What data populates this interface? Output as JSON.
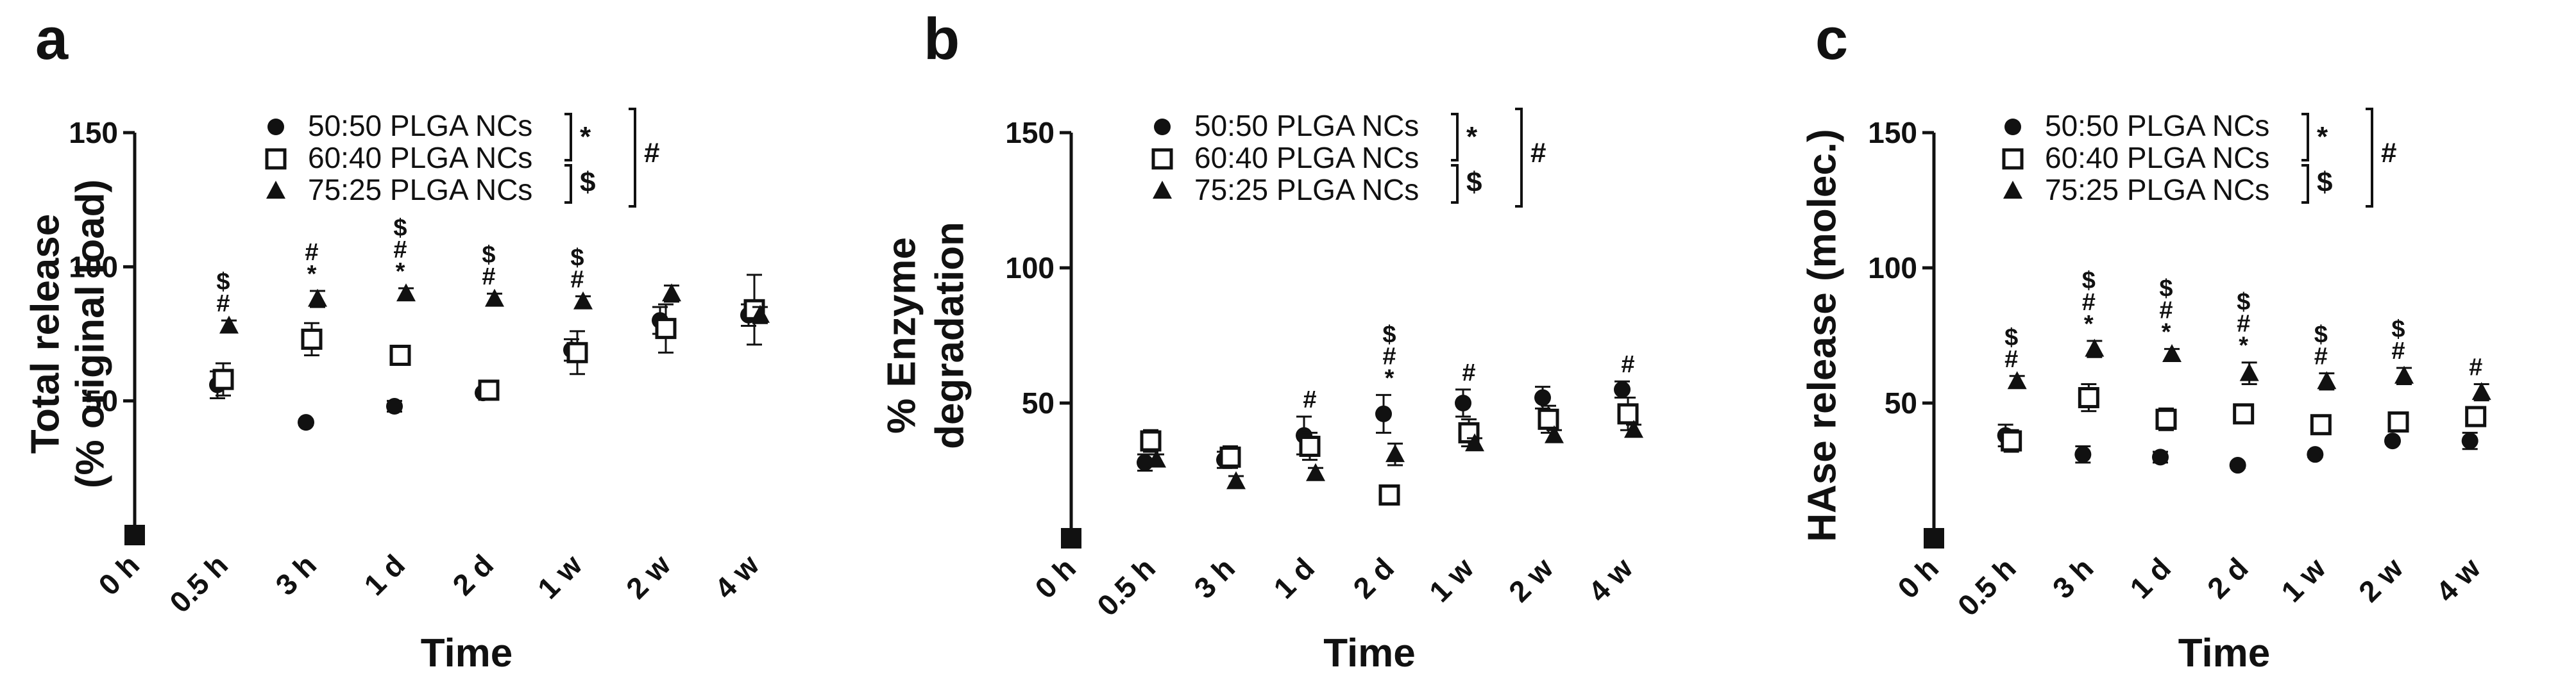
{
  "chart_data": [
    {
      "type": "scatter",
      "panel_label": "a",
      "ylabel": [
        "Total release",
        "(% original load)"
      ],
      "xlabel": "Time",
      "categories": [
        "0 h",
        "0.5 h",
        "3 h",
        "1 d",
        "2 d",
        "1 w",
        "2 w",
        "4 w"
      ],
      "ylim": [
        0,
        150
      ],
      "yticks": [
        "50",
        "100",
        "150"
      ],
      "legend_position": "top",
      "series": [
        {
          "name": "50:50 PLGA NCs",
          "marker": "circle",
          "values": [
            0,
            56,
            42,
            48,
            53,
            69,
            80,
            82
          ],
          "errors": [
            0,
            5,
            1,
            2,
            1,
            4,
            5,
            4
          ]
        },
        {
          "name": "60:40 PLGA NCs",
          "marker": "square",
          "values": [
            0,
            58,
            73,
            67,
            54,
            68,
            77,
            84
          ],
          "errors": [
            0,
            6,
            6,
            3,
            2,
            8,
            9,
            13
          ]
        },
        {
          "name": "75:25 PLGA NCs",
          "marker": "triangle",
          "values": [
            0,
            78,
            88,
            90,
            88,
            87,
            90,
            82
          ],
          "errors": [
            0,
            2,
            3,
            2,
            2,
            2,
            3,
            3
          ]
        }
      ],
      "significance": [
        {
          "category": "0.5 h",
          "marks": [
            "$",
            "#"
          ]
        },
        {
          "category": "3 h",
          "marks": [
            "#",
            "*"
          ]
        },
        {
          "category": "1 d",
          "marks": [
            "$",
            "#",
            "*"
          ]
        },
        {
          "category": "2 d",
          "marks": [
            "$",
            "#"
          ]
        },
        {
          "category": "1 w",
          "marks": [
            "$",
            "#"
          ]
        }
      ],
      "brackets": {
        "top_pair": "*",
        "bottom_pair": "$",
        "outer": "#"
      }
    },
    {
      "type": "scatter",
      "panel_label": "b",
      "ylabel": [
        "% Enzyme",
        "degradation"
      ],
      "xlabel": "Time",
      "categories": [
        "0 h",
        "0.5 h",
        "3 h",
        "1 d",
        "2 d",
        "1 w",
        "2 w",
        "4 w"
      ],
      "ylim": [
        0,
        150
      ],
      "yticks": [
        "50",
        "100",
        "150"
      ],
      "legend_position": "top",
      "series": [
        {
          "name": "50:50 PLGA NCs",
          "marker": "circle",
          "values": [
            0,
            28,
            29,
            38,
            46,
            50,
            52,
            55
          ],
          "errors": [
            0,
            3,
            3,
            7,
            7,
            5,
            4,
            3
          ]
        },
        {
          "name": "60:40 PLGA NCs",
          "marker": "square",
          "values": [
            0,
            36,
            30,
            34,
            16,
            39,
            44,
            46
          ],
          "errors": [
            0,
            4,
            4,
            5,
            2,
            5,
            5,
            6
          ]
        },
        {
          "name": "75:25 PLGA NCs",
          "marker": "triangle",
          "values": [
            0,
            29,
            21,
            24,
            31,
            35,
            38,
            40
          ],
          "errors": [
            0,
            2,
            2,
            2,
            4,
            2,
            2,
            2
          ]
        }
      ],
      "significance": [
        {
          "category": "1 d",
          "marks": [
            "#"
          ]
        },
        {
          "category": "2 d",
          "marks": [
            "$",
            "#",
            "*"
          ]
        },
        {
          "category": "1 w",
          "marks": [
            "#"
          ]
        },
        {
          "category": "4 w",
          "marks": [
            "#"
          ]
        }
      ],
      "brackets": {
        "top_pair": "*",
        "bottom_pair": "$",
        "outer": "#"
      }
    },
    {
      "type": "scatter",
      "panel_label": "c",
      "ylabel": [
        "HAse release (molec.)"
      ],
      "xlabel": "Time",
      "categories": [
        "0 h",
        "0.5 h",
        "3 h",
        "1 d",
        "2 d",
        "1 w",
        "2 w",
        "4 w"
      ],
      "ylim": [
        0,
        150
      ],
      "yticks": [
        "50",
        "100",
        "150"
      ],
      "legend_position": "top",
      "series": [
        {
          "name": "50:50 PLGA NCs",
          "marker": "circle",
          "values": [
            0,
            38,
            31,
            30,
            27,
            31,
            36,
            36
          ],
          "errors": [
            0,
            4,
            3,
            2,
            1,
            1,
            1,
            3
          ]
        },
        {
          "name": "60:40 PLGA NCs",
          "marker": "square",
          "values": [
            0,
            36,
            52,
            44,
            46,
            42,
            43,
            45
          ],
          "errors": [
            0,
            4,
            5,
            4,
            2,
            3,
            3,
            3
          ]
        },
        {
          "name": "75:25 PLGA NCs",
          "marker": "triangle",
          "values": [
            0,
            58,
            70,
            68,
            61,
            58,
            60,
            54
          ],
          "errors": [
            0,
            2,
            3,
            2,
            4,
            3,
            3,
            3
          ]
        }
      ],
      "significance": [
        {
          "category": "0.5 h",
          "marks": [
            "$",
            "#"
          ]
        },
        {
          "category": "3 h",
          "marks": [
            "$",
            "#",
            "*"
          ]
        },
        {
          "category": "1 d",
          "marks": [
            "$",
            "#",
            "*"
          ]
        },
        {
          "category": "2 d",
          "marks": [
            "$",
            "#",
            "*"
          ]
        },
        {
          "category": "1 w",
          "marks": [
            "$",
            "#"
          ]
        },
        {
          "category": "2 w",
          "marks": [
            "$",
            "#"
          ]
        },
        {
          "category": "4 w",
          "marks": [
            "#"
          ]
        }
      ],
      "brackets": {
        "top_pair": "*",
        "bottom_pair": "$",
        "outer": "#"
      }
    }
  ]
}
